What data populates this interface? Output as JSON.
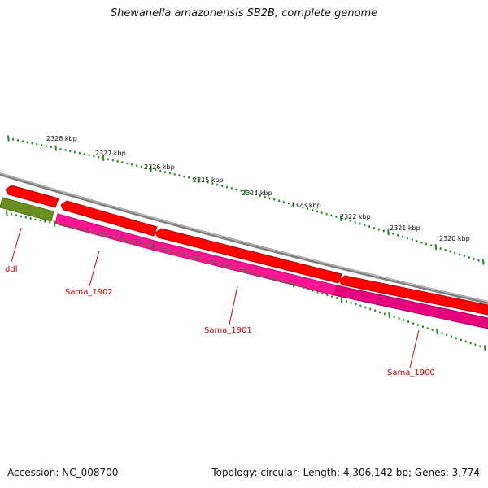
{
  "header": {
    "title": "Shewanella amazonensis SB2B, complete genome"
  },
  "footer": {
    "accession": "Accession: NC_008700",
    "stats": "Topology: circular; Length: 4,306,142 bp; Genes: 3,774"
  },
  "scale": {
    "labels": [
      "2328 kbp",
      "2327 kbp",
      "2326 kbp",
      "2325 kbp",
      "2324 kbp",
      "2323 kbp",
      "2322 kbp",
      "2321 kbp",
      "2320 kbp"
    ]
  },
  "genes": {
    "labels": [
      "ddl",
      "Sama_1902",
      "Sama_1901",
      "Sama_1900"
    ]
  },
  "colors": {
    "forward_cds": "#ff0000",
    "reverse_cds": "#ff1493",
    "other_feature": "#6b8e23",
    "backbone": "#808080",
    "tick": "#228b22",
    "label_text": "#cc0000"
  }
}
